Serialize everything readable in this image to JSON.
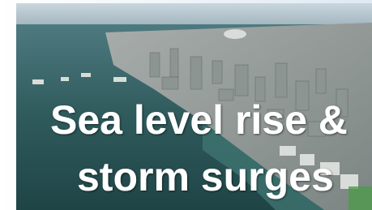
{
  "image": {
    "caption_lines": [
      "Sea level rise &",
      "storm surges"
    ]
  }
}
